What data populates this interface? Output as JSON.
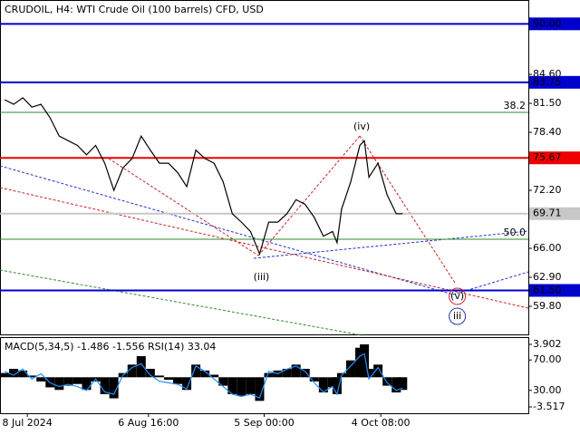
{
  "chart_data": [
    {
      "type": "line",
      "title": "CRUDOIL, H4:  WTI Crude Oil (100 barrels) CFD, USD",
      "x": [
        5,
        15,
        25,
        35,
        45,
        55,
        65,
        75,
        85,
        95,
        105,
        115,
        125,
        135,
        145,
        155,
        165,
        175,
        185,
        195,
        205,
        215,
        225,
        235,
        245,
        255,
        265,
        275,
        285,
        295,
        305,
        315,
        325,
        335,
        345,
        355,
        365,
        370,
        375,
        385,
        395,
        400,
        405,
        415,
        425,
        435,
        442
      ],
      "series": [
        {
          "color": "#000000",
          "values": [
            81.89,
            81.4,
            82.1,
            81.1,
            81.4,
            79.95,
            78.0,
            77.5,
            77.0,
            76.0,
            77.0,
            75.1,
            72.2,
            74.6,
            75.6,
            78.0,
            76.5,
            75.1,
            75.1,
            74.1,
            72.6,
            76.5,
            75.6,
            75.1,
            73.1,
            69.7,
            68.8,
            67.8,
            65.4,
            68.8,
            68.8,
            69.7,
            71.2,
            70.7,
            69.3,
            67.3,
            67.8,
            66.6,
            70.2,
            73.1,
            77.0,
            77.5,
            73.6,
            75.1,
            71.7,
            69.7,
            69.7
          ]
        }
      ],
      "xlim": [
        0,
        580
      ],
      "xticks": [
        {
          "value": 30,
          "label": "8 Jul 2024"
        },
        {
          "value": 163,
          "label": "6 Aug 16:00"
        },
        {
          "value": 290,
          "label": "5 Sep 00:00"
        },
        {
          "value": 418,
          "label": "4 Oct 08:00"
        }
      ],
      "ylim": [
        56.7,
        92.55
      ],
      "yticks": [
        {
          "value": 59.8,
          "label": "59.80"
        },
        {
          "value": 62.9,
          "label": "62.90"
        },
        {
          "value": 66,
          "label": "66.00"
        },
        {
          "value": 72.2,
          "label": "72.20"
        },
        {
          "value": 78.4,
          "label": "78.40"
        },
        {
          "value": 81.5,
          "label": "81.50"
        },
        {
          "value": 84.6,
          "label": "84.60"
        }
      ],
      "levels": [
        {
          "value": 90,
          "label": "90.00",
          "color": "#0000cc"
        },
        {
          "value": 83.75,
          "label": "83.75",
          "color": "#0000cc"
        },
        {
          "value": 75.67,
          "label": "75.67",
          "color": "#ee0000"
        },
        {
          "value": 61.5,
          "label": "61.50",
          "color": "#0000cc"
        },
        {
          "value": 69.71,
          "label": "69.71",
          "color": "#c8c8c8"
        }
      ],
      "fib_levels": [
        {
          "value": 80.53,
          "label": "38.2"
        },
        {
          "value": 66.97,
          "label": "50.0"
        }
      ],
      "fib_color": "#2e8b2e",
      "annotations": [
        {
          "text": "(iv)",
          "x": 397,
          "y": 78.98,
          "color": "#cc2222"
        },
        {
          "text": "(iii)",
          "x": 287,
          "y": 62.89,
          "color": "#cc2222"
        },
        {
          "text": "(v)",
          "x": 502,
          "y": 60.87,
          "color": "#cc2222"
        },
        {
          "text": "iii",
          "x": 502,
          "y": 58.73,
          "color": "#2233aa"
        }
      ]
    },
    {
      "type": "bar",
      "title": "MACD(5,34,5) -1.486 -1.556 RSI(14) 33.04",
      "x": [
        5,
        15,
        25,
        35,
        45,
        55,
        65,
        75,
        85,
        95,
        105,
        115,
        125,
        135,
        145,
        155,
        165,
        175,
        185,
        195,
        205,
        215,
        225,
        235,
        245,
        255,
        265,
        275,
        285,
        295,
        305,
        315,
        325,
        335,
        345,
        355,
        365,
        370,
        375,
        385,
        395,
        400,
        405,
        415,
        425,
        435,
        442
      ],
      "values": [
        0.5,
        1.0,
        0.8,
        0.2,
        -0.5,
        -1.2,
        -1.5,
        -1.0,
        -0.8,
        -1.5,
        -0.5,
        -2.0,
        -2.5,
        0.5,
        1.5,
        2.5,
        1.0,
        0.2,
        -0.3,
        -0.8,
        -1.5,
        1.5,
        0.8,
        0.3,
        -1.0,
        -2.0,
        -2.2,
        -2.0,
        -2.8,
        0.5,
        0.8,
        1.0,
        1.5,
        1.0,
        -0.5,
        -1.8,
        -1.2,
        -2.0,
        0.5,
        2.0,
        3.5,
        3.9,
        1.0,
        1.5,
        -1.0,
        -1.8,
        -1.5
      ],
      "color": "#000000",
      "series": [
        {
          "color": "#1e90ff",
          "axis": "y2",
          "values": [
            55,
            50,
            58,
            45,
            52,
            40,
            35,
            38,
            35,
            30,
            45,
            28,
            25,
            50,
            60,
            65,
            50,
            42,
            40,
            38,
            32,
            62,
            55,
            45,
            35,
            25,
            22,
            25,
            20,
            55,
            52,
            58,
            62,
            55,
            40,
            28,
            35,
            25,
            50,
            62,
            75,
            78,
            45,
            60,
            40,
            30,
            33
          ]
        }
      ],
      "xlim": [
        0,
        580
      ],
      "ylim": [
        -4.27,
        4.76
      ],
      "yticks": [
        3.902,
        -3.517
      ],
      "y2lim": [
        0,
        100
      ],
      "y2ticks": [
        {
          "value": 70,
          "label": "70.00"
        },
        {
          "value": 30,
          "label": "30.00"
        }
      ]
    }
  ]
}
